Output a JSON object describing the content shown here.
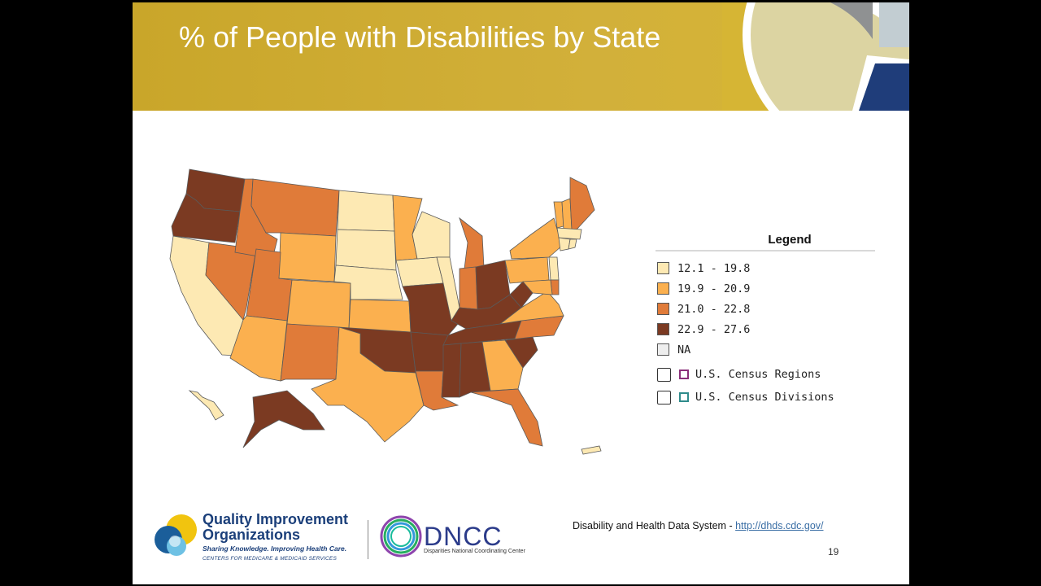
{
  "slide": {
    "title": "% of People with Disabilities by State",
    "page_number": "19"
  },
  "legend": {
    "title": "Legend",
    "bins": [
      {
        "label": "12.1 - 19.8",
        "color": "#fde9b3"
      },
      {
        "label": "19.9 - 20.9",
        "color": "#fbb04f"
      },
      {
        "label": "21.0 - 22.8",
        "color": "#e07b39"
      },
      {
        "label": "22.9 - 27.6",
        "color": "#7b3a22"
      },
      {
        "label": "NA",
        "color": "#eeeeee"
      }
    ],
    "toggles": [
      {
        "label": "U.S. Census Regions",
        "checked": false,
        "color": "#8b2f7a"
      },
      {
        "label": "U.S. Census Divisions",
        "checked": false,
        "color": "#2f8b8b"
      }
    ]
  },
  "footer": {
    "qio_name_line1": "Quality Improvement",
    "qio_name_line2": "Organizations",
    "qio_tagline": "Sharing Knowledge. Improving Health Care.",
    "qio_sub": "CENTERS FOR MEDICARE & MEDICAID SERVICES",
    "dncc_name": "DNCC",
    "dncc_sub": "Disparities National Coordinating Center",
    "source_text": "Disability and Health Data System - ",
    "source_link": "http://dhds.cdc.gov/"
  },
  "map_data": {
    "states": {
      "WA": 4,
      "OR": 4,
      "CA": 1,
      "NV": 3,
      "ID": 3,
      "MT": 3,
      "WY": 2,
      "UT": 3,
      "AZ": 2,
      "CO": 2,
      "NM": 3,
      "ND": 1,
      "SD": 1,
      "NE": 1,
      "KS": 2,
      "OK": 4,
      "TX": 2,
      "MN": 2,
      "IA": 1,
      "MO": 4,
      "AR": 4,
      "LA": 3,
      "WI": 1,
      "IL": 1,
      "MI": 3,
      "IN": 3,
      "OH": 4,
      "KY": 4,
      "TN": 4,
      "MS": 4,
      "AL": 4,
      "GA": 2,
      "FL": 3,
      "SC": 4,
      "NC": 3,
      "VA": 2,
      "WV": 4,
      "PA": 2,
      "NY": 2,
      "VT": 2,
      "NH": 2,
      "ME": 3,
      "MA": 1,
      "CT": 1,
      "RI": 1,
      "NJ": 1,
      "DE": 3,
      "MD": 2,
      "AK": 4,
      "HI": 1,
      "PR": 1
    }
  }
}
